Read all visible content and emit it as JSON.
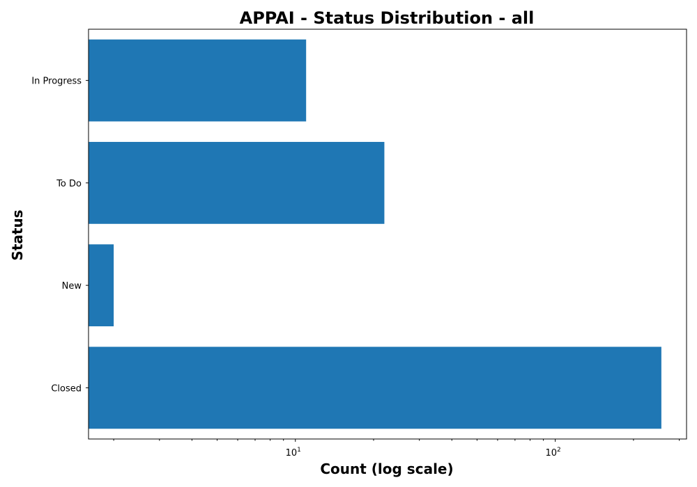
{
  "chart_data": {
    "type": "bar",
    "orientation": "horizontal",
    "title": "APPAI - Status Distribution - all",
    "xlabel": "Count (log scale)",
    "ylabel": "Status",
    "x_scale": "log",
    "xlim": [
      1.6,
      320
    ],
    "x_ticks": [
      {
        "base": "10",
        "exp": "1",
        "value": 10
      },
      {
        "base": "10",
        "exp": "2",
        "value": 100
      }
    ],
    "categories": [
      "In Progress",
      "To Do",
      "New",
      "Closed"
    ],
    "values": [
      11,
      22,
      2,
      256
    ],
    "grid": false,
    "colors": {
      "bar": "#1f77b4",
      "axis": "#000000"
    }
  }
}
